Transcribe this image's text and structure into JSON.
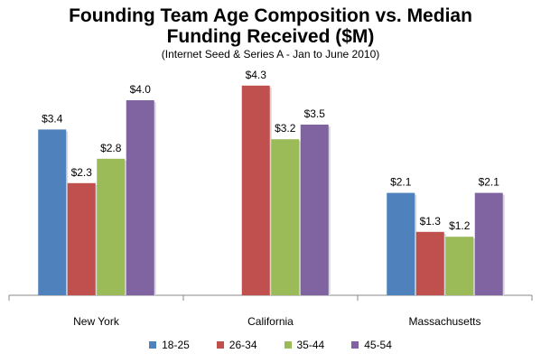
{
  "chart_data": {
    "type": "bar",
    "title_line1": "Founding Team Age Composition vs. Median",
    "title_line2": "Funding Received ($M)",
    "subtitle": "(Internet Seed & Series A - Jan to June 2010)",
    "categories": [
      "New York",
      "California",
      "Massachusetts"
    ],
    "series": [
      {
        "name": "18-25",
        "color": "#4F81BD",
        "values": [
          3.4,
          null,
          2.1
        ],
        "labels": [
          "$3.4",
          "",
          "$2.1"
        ]
      },
      {
        "name": "26-34",
        "color": "#C0504D",
        "values": [
          2.3,
          4.3,
          1.3
        ],
        "labels": [
          "$2.3",
          "$4.3",
          "$1.3"
        ]
      },
      {
        "name": "35-44",
        "color": "#9BBB59",
        "values": [
          2.8,
          3.2,
          1.2
        ],
        "labels": [
          "$2.8",
          "$3.2",
          "$1.2"
        ]
      },
      {
        "name": "45-54",
        "color": "#8064A2",
        "values": [
          4.0,
          3.5,
          2.1
        ],
        "labels": [
          "$4.0",
          "$3.5",
          "$2.1"
        ]
      }
    ],
    "ylim": [
      0,
      4.5
    ],
    "grid": false,
    "legend_position": "bottom"
  }
}
